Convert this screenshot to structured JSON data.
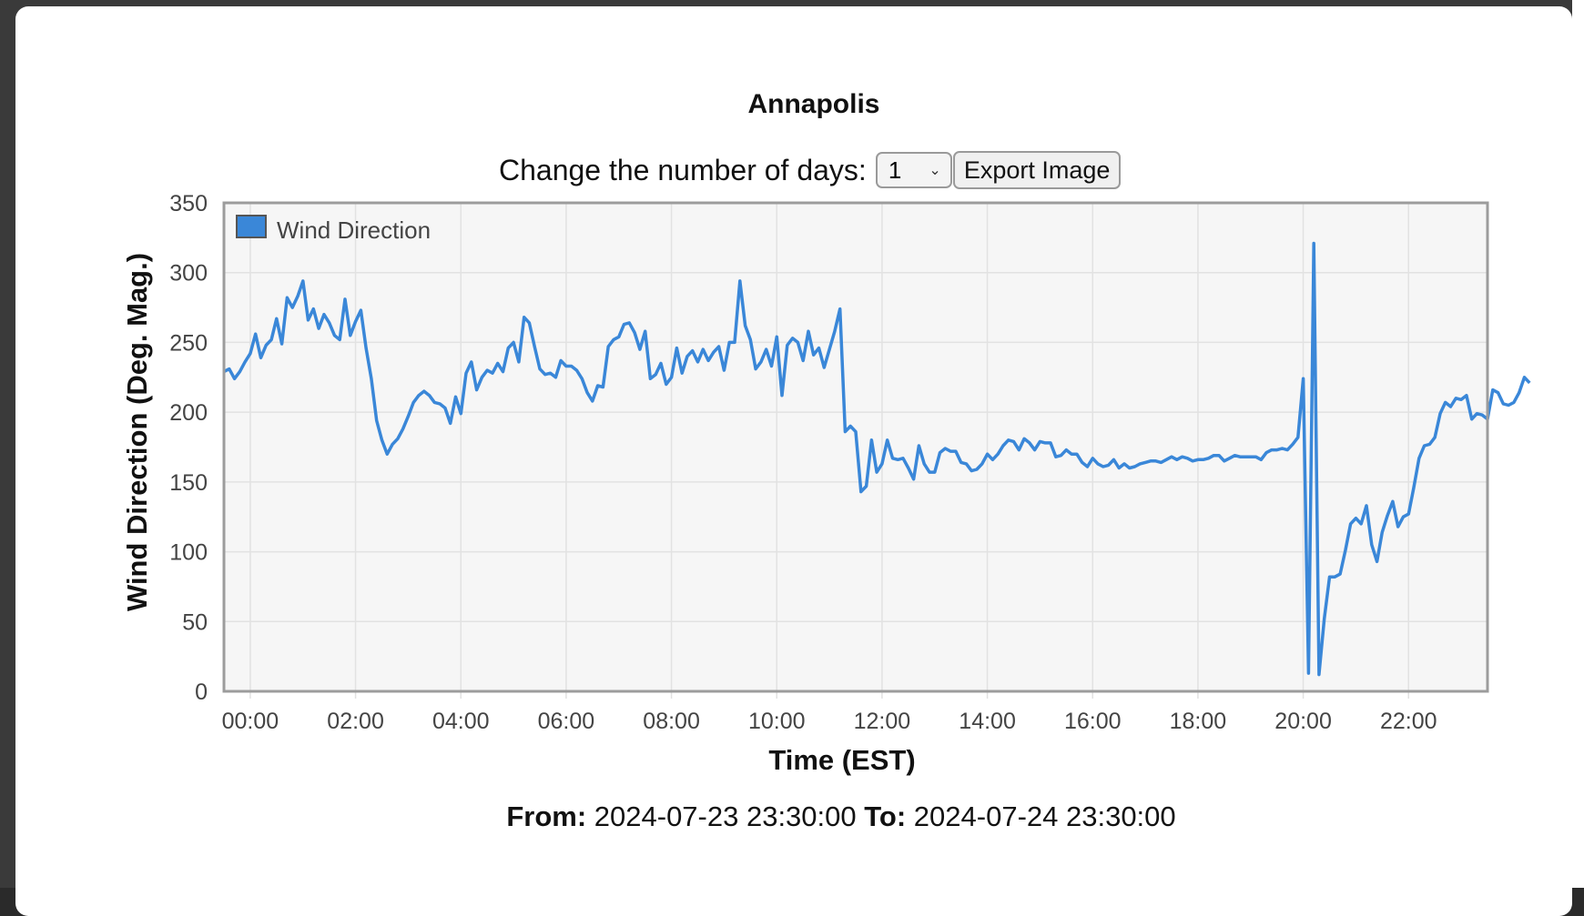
{
  "title": "Annapolis",
  "controls": {
    "label": "Change the number of days:",
    "days_value": "1",
    "export_label": "Export Image"
  },
  "range": {
    "from_label": "From:",
    "from_value": "2024-07-23 23:30:00",
    "to_label": "To:",
    "to_value": "2024-07-24 23:30:00"
  },
  "chart_data": {
    "type": "line",
    "xlabel": "Time (EST)",
    "ylabel": "Wind Direction (Deg. Mag.)",
    "ylim": [
      0,
      350
    ],
    "yticks": [
      0,
      50,
      100,
      150,
      200,
      250,
      300,
      350
    ],
    "xlim_hours": [
      -0.5,
      23.5
    ],
    "xticks": [
      "00:00",
      "02:00",
      "04:00",
      "06:00",
      "08:00",
      "10:00",
      "12:00",
      "14:00",
      "16:00",
      "18:00",
      "20:00",
      "22:00"
    ],
    "grid": true,
    "legend_position": "top-left",
    "color": "#3a87d8",
    "series": [
      {
        "name": "Wind Direction",
        "x_start": "23:30",
        "interval_minutes": 6,
        "values": [
          229,
          231,
          224,
          229,
          236,
          242,
          256,
          239,
          248,
          252,
          267,
          249,
          282,
          275,
          283,
          294,
          266,
          274,
          260,
          270,
          264,
          255,
          252,
          281,
          255,
          265,
          273,
          246,
          224,
          194,
          180,
          170,
          177,
          181,
          188,
          197,
          207,
          212,
          215,
          212,
          207,
          206,
          203,
          192,
          211,
          199,
          228,
          236,
          216,
          225,
          230,
          228,
          235,
          229,
          246,
          250,
          236,
          268,
          264,
          247,
          231,
          227,
          228,
          225,
          237,
          233,
          233,
          230,
          224,
          214,
          208,
          219,
          218,
          247,
          252,
          254,
          263,
          264,
          257,
          245,
          258,
          224,
          227,
          235,
          220,
          225,
          246,
          228,
          240,
          244,
          236,
          245,
          237,
          243,
          247,
          230,
          250,
          250,
          294,
          262,
          252,
          231,
          236,
          245,
          233,
          254,
          212,
          248,
          253,
          250,
          237,
          258,
          241,
          246,
          232,
          245,
          258,
          274,
          186,
          190,
          186,
          143,
          147,
          180,
          157,
          163,
          180,
          167,
          166,
          167,
          160,
          152,
          176,
          163,
          157,
          157,
          171,
          174,
          172,
          172,
          164,
          163,
          158,
          159,
          163,
          170,
          166,
          170,
          176,
          180,
          179,
          173,
          181,
          178,
          173,
          179,
          178,
          178,
          168,
          169,
          173,
          170,
          170,
          164,
          161,
          167,
          163,
          161,
          162,
          166,
          160,
          163,
          160,
          161,
          163,
          164,
          165,
          165,
          164,
          166,
          168,
          166,
          168,
          167,
          165,
          166,
          166,
          167,
          169,
          169,
          165,
          167,
          169,
          168,
          168,
          168,
          168,
          166,
          171,
          173,
          173,
          174,
          173,
          177,
          182,
          224,
          13,
          321,
          12,
          52,
          82,
          82,
          84,
          101,
          120,
          124,
          120,
          133,
          105,
          93,
          114,
          126,
          136,
          118,
          125,
          127,
          146,
          167,
          176,
          177,
          182,
          199,
          207,
          204,
          210,
          209,
          212,
          195,
          199,
          198,
          195,
          216,
          214,
          206,
          205,
          207,
          214,
          225,
          221
        ]
      }
    ]
  }
}
